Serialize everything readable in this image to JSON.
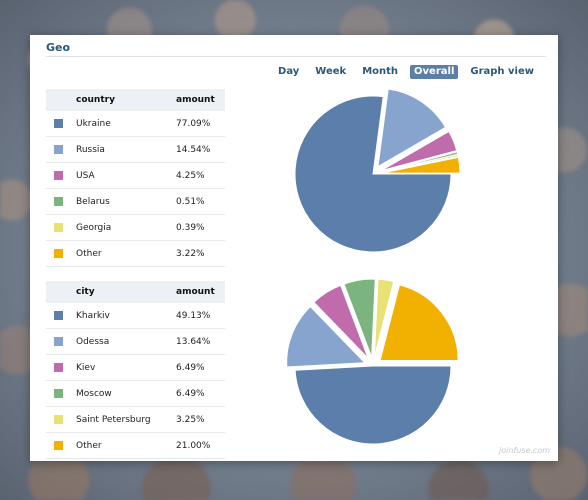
{
  "panel": {
    "title": "Geo"
  },
  "tabs": [
    {
      "label": "Day",
      "active": false
    },
    {
      "label": "Week",
      "active": false
    },
    {
      "label": "Month",
      "active": false
    },
    {
      "label": "Overall",
      "active": true
    },
    {
      "label": "Graph view",
      "active": false
    }
  ],
  "country_table": {
    "headers": [
      "country",
      "amount"
    ],
    "rows": [
      {
        "name": "Ukraine",
        "amount": "77.09%",
        "color": "#5b7eab"
      },
      {
        "name": "Russia",
        "amount": "14.54%",
        "color": "#87a4cf"
      },
      {
        "name": "USA",
        "amount": "4.25%",
        "color": "#c06bac"
      },
      {
        "name": "Belarus",
        "amount": "0.51%",
        "color": "#7bb47f"
      },
      {
        "name": "Georgia",
        "amount": "0.39%",
        "color": "#e7e176"
      },
      {
        "name": "Other",
        "amount": "3.22%",
        "color": "#f2b000"
      }
    ]
  },
  "city_table": {
    "headers": [
      "city",
      "amount"
    ],
    "rows": [
      {
        "name": "Kharkiv",
        "amount": "49.13%",
        "color": "#5b7eab"
      },
      {
        "name": "Odessa",
        "amount": "13.64%",
        "color": "#87a4cf"
      },
      {
        "name": "Kiev",
        "amount": "6.49%",
        "color": "#c06bac"
      },
      {
        "name": "Moscow",
        "amount": "6.49%",
        "color": "#7bb47f"
      },
      {
        "name": "Saint Petersburg",
        "amount": "3.25%",
        "color": "#e7e176"
      },
      {
        "name": "Other",
        "amount": "21.00%",
        "color": "#f2b000"
      }
    ]
  },
  "chart_data": [
    {
      "type": "pie",
      "categories": [
        "Ukraine",
        "Russia",
        "USA",
        "Belarus",
        "Georgia",
        "Other"
      ],
      "values": [
        77.09,
        14.54,
        4.25,
        0.51,
        0.39,
        3.22
      ],
      "colors": [
        "#5b7eab",
        "#87a4cf",
        "#c06bac",
        "#7bb47f",
        "#e7e176",
        "#f2b000"
      ]
    },
    {
      "type": "pie",
      "categories": [
        "Kharkiv",
        "Odessa",
        "Kiev",
        "Moscow",
        "Saint Petersburg",
        "Other"
      ],
      "values": [
        49.13,
        13.64,
        6.49,
        6.49,
        3.25,
        21.0
      ],
      "colors": [
        "#5b7eab",
        "#87a4cf",
        "#c06bac",
        "#7bb47f",
        "#e7e176",
        "#f2b000"
      ]
    }
  ],
  "watermark": "joinfuse.com"
}
